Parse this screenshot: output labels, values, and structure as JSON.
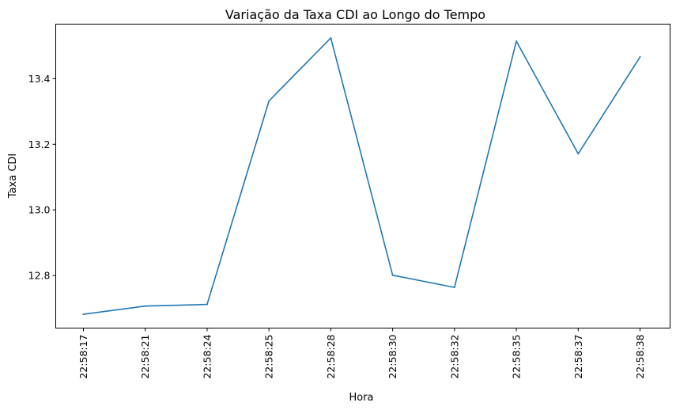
{
  "chart_data": {
    "type": "line",
    "title": "Variação da Taxa CDI ao Longo do Tempo",
    "xlabel": "Hora",
    "ylabel": "Taxa CDI",
    "categories": [
      "22:58:17",
      "22:58:21",
      "22:58:24",
      "22:58:25",
      "22:58:28",
      "22:58:30",
      "22:58:32",
      "22:58:35",
      "22:58:37",
      "22:58:38"
    ],
    "series": [
      {
        "values": [
          12.682,
          12.707,
          12.712,
          13.332,
          13.524,
          12.801,
          12.764,
          13.514,
          13.171,
          13.466
        ],
        "color": "#1f77b4"
      }
    ],
    "yticks": [
      12.8,
      13.0,
      13.2,
      13.4
    ],
    "ylim": [
      12.64,
      13.566
    ],
    "grid": false,
    "legend": "none"
  }
}
